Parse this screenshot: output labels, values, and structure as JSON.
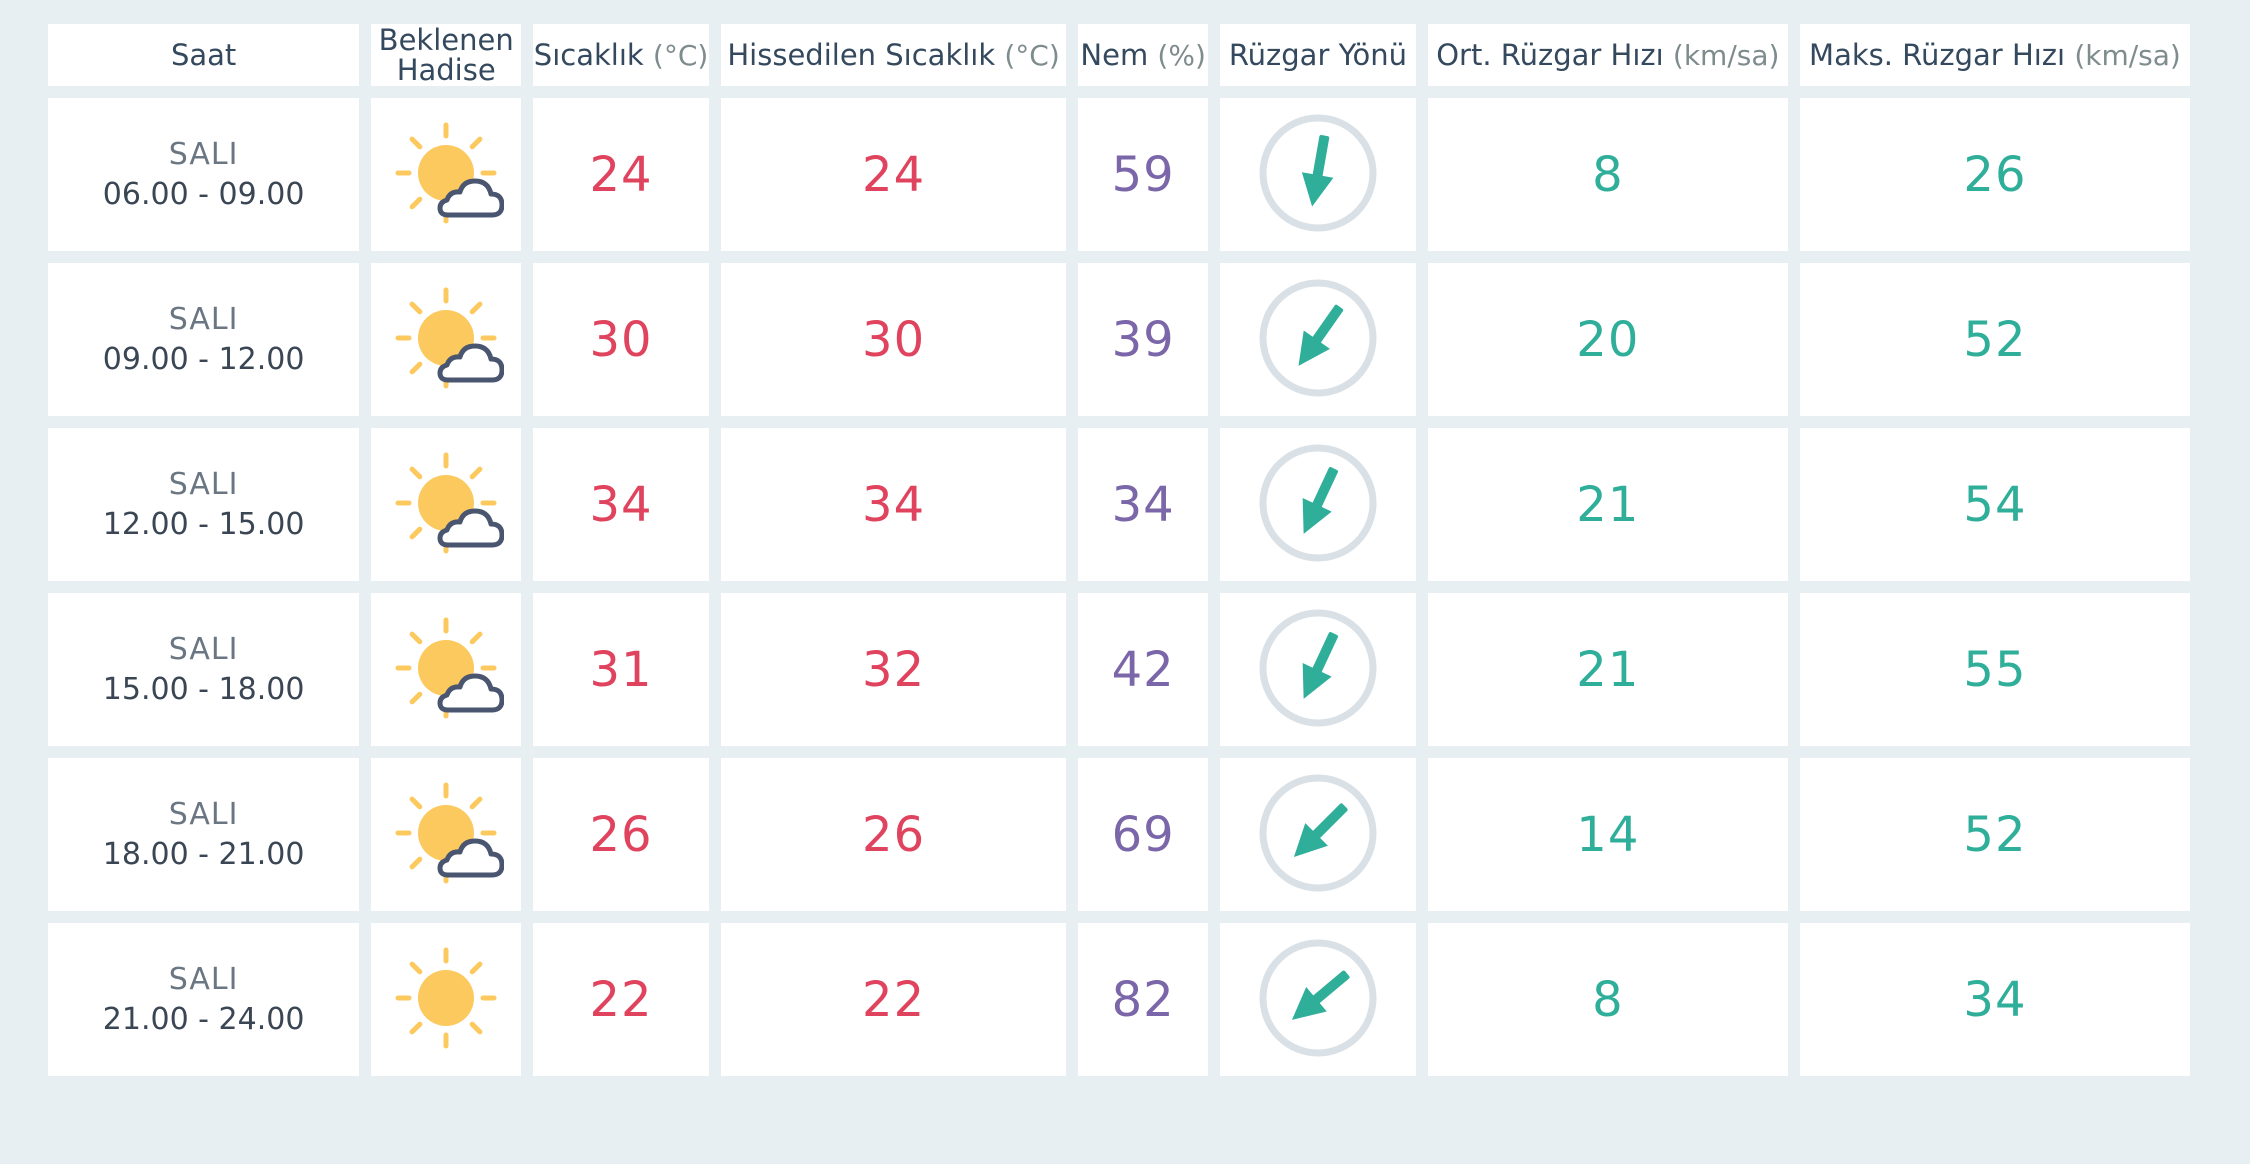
{
  "table": {
    "headers": {
      "saat": "Saat",
      "hadise_line1": "Beklenen",
      "hadise_line2": "Hadise",
      "sicaklik": "Sıcaklık",
      "sicaklik_unit": "(°C)",
      "hissedilen": "Hissedilen Sıcaklık",
      "hissedilen_unit": "(°C)",
      "nem": "Nem",
      "nem_unit": "(%)",
      "ruzgar_yonu": "Rüzgar Yönü",
      "ort_ruzgar": "Ort. Rüzgar Hızı",
      "ort_ruzgar_unit": "(km/sa)",
      "maks_ruzgar": "Maks. Rüzgar Hızı",
      "maks_ruzgar_unit": "(km/sa)"
    },
    "rows": [
      {
        "day": "SALI",
        "range": "06.00 - 09.00",
        "icon": "partly-cloudy-icon",
        "sicaklik": "24",
        "hissedilen": "24",
        "nem": "59",
        "wind_dir_icon": "wind-arrow-icon",
        "wind_dir_deg": 190,
        "ort": "8",
        "maks": "26"
      },
      {
        "day": "SALI",
        "range": "09.00 - 12.00",
        "icon": "partly-cloudy-icon",
        "sicaklik": "30",
        "hissedilen": "30",
        "nem": "39",
        "wind_dir_icon": "wind-arrow-icon",
        "wind_dir_deg": 215,
        "ort": "20",
        "maks": "52"
      },
      {
        "day": "SALI",
        "range": "12.00 - 15.00",
        "icon": "partly-cloudy-icon",
        "sicaklik": "34",
        "hissedilen": "34",
        "nem": "34",
        "wind_dir_icon": "wind-arrow-icon",
        "wind_dir_deg": 205,
        "ort": "21",
        "maks": "54"
      },
      {
        "day": "SALI",
        "range": "15.00 - 18.00",
        "icon": "partly-cloudy-icon",
        "sicaklik": "31",
        "hissedilen": "32",
        "nem": "42",
        "wind_dir_icon": "wind-arrow-icon",
        "wind_dir_deg": 205,
        "ort": "21",
        "maks": "55"
      },
      {
        "day": "SALI",
        "range": "18.00 - 21.00",
        "icon": "partly-cloudy-icon",
        "sicaklik": "26",
        "hissedilen": "26",
        "nem": "69",
        "wind_dir_icon": "wind-arrow-icon",
        "wind_dir_deg": 225,
        "ort": "14",
        "maks": "52"
      },
      {
        "day": "SALI",
        "range": "21.00 - 24.00",
        "icon": "sunny-icon",
        "sicaklik": "22",
        "hissedilen": "22",
        "nem": "82",
        "wind_dir_icon": "wind-arrow-icon",
        "wind_dir_deg": 230,
        "ort": "8",
        "maks": "34"
      }
    ]
  },
  "colors": {
    "background": "#e8eff3",
    "temperature": "#e0435e",
    "humidity": "#7a66a8",
    "wind": "#2fae9a",
    "sun": "#fcc95e",
    "cloud_outline": "#4a5670",
    "wind_circle": "#d9e0e6"
  }
}
